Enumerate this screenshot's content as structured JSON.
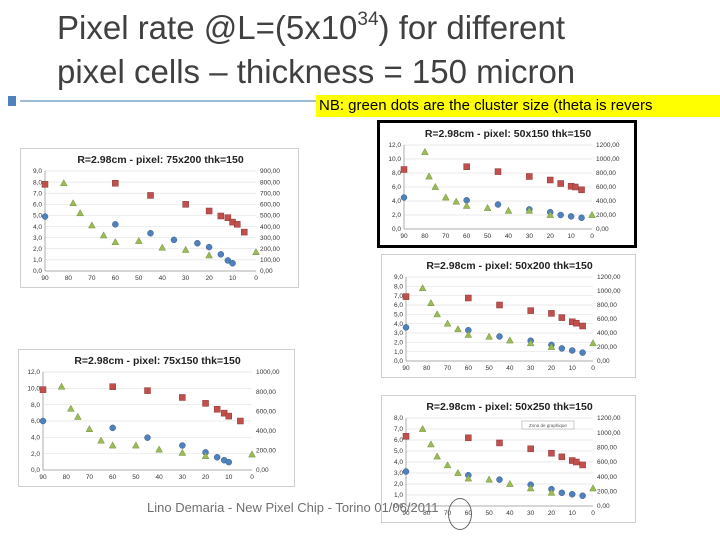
{
  "slide": {
    "title_part1": "Pixel rate @L=(5x10",
    "title_exp": "34",
    "title_part2": ") for different",
    "title_line2": "pixel cells – thickness = 150 micron",
    "note": "NB: green dots are the cluster size (theta is revers",
    "footer": "Lino Demaria - New Pixel Chip -  Torino 01/06/2011"
  },
  "colors": {
    "red": "#c0504d",
    "blue": "#4f81bd",
    "green": "#9bbb59",
    "accent": "#4f81bd",
    "highlight": "#ffff00"
  },
  "chart_data": [
    {
      "id": "c1",
      "type": "scatter",
      "title": "R=2.98cm - pixel: 75x200 thk=150",
      "xlim": [
        90,
        0
      ],
      "x_ticks": [
        "90",
        "80",
        "70",
        "60",
        "50",
        "40",
        "30",
        "20",
        "10",
        "0"
      ],
      "y_left_ticks": [
        "0,0",
        "1,0",
        "2,0",
        "3,0",
        "4,0",
        "5,0",
        "6,0",
        "7,0",
        "8,0",
        "9,0"
      ],
      "y_right_ticks": [
        "0,00",
        "100,00",
        "200,00",
        "300,00",
        "400,00",
        "500,00",
        "600,00",
        "700,00",
        "800,00",
        "900,00"
      ],
      "y_left_lim": [
        0,
        9
      ],
      "y_right_lim": [
        0,
        900
      ],
      "series": [
        {
          "name": "pixel rate (blue)",
          "color": "#4f81bd",
          "axis": "right",
          "shape": "diamond",
          "x": [
            90,
            60,
            45,
            35,
            25,
            20,
            15,
            12,
            10
          ],
          "y": [
            490,
            420,
            340,
            280,
            250,
            215,
            150,
            95,
            70
          ]
        },
        {
          "name": "pixel rate (red)",
          "color": "#c0504d",
          "axis": "right",
          "shape": "square",
          "x": [
            90,
            60,
            45,
            30,
            20,
            15,
            12,
            10,
            8,
            5
          ],
          "y": [
            780,
            790,
            680,
            600,
            540,
            495,
            480,
            440,
            420,
            350
          ]
        },
        {
          "name": "cluster size",
          "color": "#9bbb59",
          "axis": "left",
          "shape": "triangle",
          "x": [
            82,
            78,
            75,
            70,
            65,
            60,
            50,
            40,
            30,
            20,
            0
          ],
          "y": [
            7.9,
            6.1,
            5.2,
            4.1,
            3.2,
            2.6,
            2.7,
            2.1,
            1.9,
            1.4,
            1.7
          ]
        }
      ]
    },
    {
      "id": "c2",
      "type": "scatter",
      "title": "R=2.98cm - pixel: 50x150 thk=150",
      "xlim": [
        90,
        0
      ],
      "x_ticks": [
        "90",
        "80",
        "70",
        "60",
        "50",
        "40",
        "30",
        "20",
        "10",
        "0"
      ],
      "y_left_ticks": [
        "0,0",
        "2,0",
        "4,0",
        "6,0",
        "8,0",
        "10,0",
        "12,0"
      ],
      "y_right_ticks": [
        "0,00",
        "200,00",
        "400,00",
        "600,00",
        "800,00",
        "1000,00",
        "1200,00"
      ],
      "y_left_lim": [
        0,
        12
      ],
      "y_right_lim": [
        0,
        1200
      ],
      "series": [
        {
          "name": "pixel rate (blue)",
          "color": "#4f81bd",
          "axis": "right",
          "shape": "diamond",
          "x": [
            90,
            60,
            45,
            30,
            20,
            15,
            10,
            5
          ],
          "y": [
            450,
            410,
            350,
            280,
            240,
            200,
            180,
            160
          ]
        },
        {
          "name": "pixel rate (red)",
          "color": "#c0504d",
          "axis": "right",
          "shape": "square",
          "x": [
            90,
            60,
            45,
            30,
            20,
            15,
            10,
            8,
            5
          ],
          "y": [
            850,
            890,
            820,
            750,
            700,
            650,
            610,
            600,
            560
          ]
        },
        {
          "name": "cluster size",
          "color": "#9bbb59",
          "axis": "left",
          "shape": "triangle",
          "x": [
            80,
            78,
            75,
            70,
            65,
            60,
            50,
            40,
            30,
            20,
            0
          ],
          "y": [
            11.0,
            7.5,
            6.0,
            4.5,
            3.9,
            3.3,
            3.0,
            2.6,
            2.6,
            2.0,
            2.0
          ]
        }
      ]
    },
    {
      "id": "c3",
      "type": "scatter",
      "title": "R=2.98cm - pixel: 50x200 thk=150",
      "xlim": [
        90,
        0
      ],
      "x_ticks": [
        "90",
        "80",
        "70",
        "60",
        "50",
        "40",
        "30",
        "20",
        "10",
        "0"
      ],
      "y_left_ticks": [
        "0,0",
        "1,0",
        "2,0",
        "3,0",
        "4,0",
        "5,0",
        "6,0",
        "7,0",
        "8,0",
        "9,0"
      ],
      "y_right_ticks": [
        "0,00",
        "200,00",
        "400,00",
        "600,00",
        "800,00",
        "1000,00",
        "1200,00"
      ],
      "y_left_lim": [
        0,
        9
      ],
      "y_right_lim": [
        0,
        1200
      ],
      "series": [
        {
          "name": "pixel rate (blue)",
          "color": "#4f81bd",
          "axis": "right",
          "shape": "diamond",
          "x": [
            90,
            60,
            45,
            30,
            20,
            15,
            10,
            5
          ],
          "y": [
            480,
            440,
            350,
            290,
            230,
            180,
            150,
            120
          ]
        },
        {
          "name": "pixel rate (red)",
          "color": "#c0504d",
          "axis": "right",
          "shape": "square",
          "x": [
            90,
            60,
            45,
            30,
            20,
            15,
            10,
            8,
            5
          ],
          "y": [
            920,
            900,
            800,
            720,
            680,
            620,
            560,
            540,
            500
          ]
        },
        {
          "name": "cluster size",
          "color": "#9bbb59",
          "axis": "left",
          "shape": "triangle",
          "x": [
            82,
            78,
            75,
            70,
            65,
            60,
            50,
            40,
            30,
            20,
            0
          ],
          "y": [
            7.8,
            6.2,
            5.0,
            4.0,
            3.4,
            2.8,
            2.6,
            2.2,
            1.9,
            1.5,
            1.9
          ]
        }
      ]
    },
    {
      "id": "c4",
      "type": "scatter",
      "title": "R=2.98cm - pixel: 75x150 thk=150",
      "xlim": [
        90,
        0
      ],
      "x_ticks": [
        "90",
        "80",
        "70",
        "60",
        "50",
        "40",
        "30",
        "20",
        "10",
        "0"
      ],
      "y_left_ticks": [
        "0,0",
        "2,0",
        "4,0",
        "6,0",
        "8,0",
        "10,0",
        "12,0"
      ],
      "y_right_ticks": [
        "0,00",
        "200,00",
        "400,00",
        "600,00",
        "800,00",
        "1000,00"
      ],
      "y_left_lim": [
        0,
        12
      ],
      "y_right_lim": [
        0,
        1000
      ],
      "series": [
        {
          "name": "pixel rate (blue)",
          "color": "#4f81bd",
          "axis": "right",
          "shape": "diamond",
          "x": [
            90,
            60,
            45,
            30,
            20,
            15,
            12,
            10
          ],
          "y": [
            500,
            430,
            330,
            250,
            180,
            130,
            100,
            80
          ]
        },
        {
          "name": "pixel rate (red)",
          "color": "#c0504d",
          "axis": "right",
          "shape": "square",
          "x": [
            90,
            60,
            45,
            30,
            20,
            15,
            12,
            10,
            5
          ],
          "y": [
            820,
            850,
            810,
            740,
            680,
            620,
            580,
            550,
            500
          ]
        },
        {
          "name": "cluster size",
          "color": "#9bbb59",
          "axis": "left",
          "shape": "triangle",
          "x": [
            82,
            78,
            75,
            70,
            65,
            60,
            50,
            40,
            30,
            20,
            0
          ],
          "y": [
            10.2,
            7.5,
            6.5,
            5.0,
            3.6,
            3.0,
            3.0,
            2.5,
            2.1,
            1.7,
            1.9
          ]
        }
      ]
    },
    {
      "id": "c5",
      "type": "scatter",
      "title": "R=2.98cm - pixel: 50x250 thk=150",
      "legend_label": "Zona de graphique",
      "xlim": [
        90,
        0
      ],
      "x_ticks": [
        "90",
        "80",
        "70",
        "60",
        "50",
        "40",
        "30",
        "20",
        "10",
        "0"
      ],
      "y_left_ticks": [
        "0,0",
        "1,0",
        "2,0",
        "3,0",
        "4,0",
        "5,0",
        "6,0",
        "7,0",
        "8,0"
      ],
      "y_right_ticks": [
        "0,00",
        "200,00",
        "400,00",
        "600,00",
        "800,00",
        "1000,00",
        "1200,00"
      ],
      "y_left_lim": [
        0,
        8
      ],
      "y_right_lim": [
        0,
        1200
      ],
      "series": [
        {
          "name": "pixel rate (blue)",
          "color": "#4f81bd",
          "axis": "right",
          "shape": "diamond",
          "x": [
            90,
            60,
            45,
            30,
            20,
            15,
            10,
            5
          ],
          "y": [
            470,
            420,
            360,
            290,
            230,
            180,
            160,
            140
          ]
        },
        {
          "name": "pixel rate (red)",
          "color": "#c0504d",
          "axis": "right",
          "shape": "square",
          "x": [
            90,
            60,
            45,
            30,
            20,
            15,
            10,
            8,
            5
          ],
          "y": [
            950,
            930,
            860,
            780,
            720,
            670,
            620,
            600,
            560
          ]
        },
        {
          "name": "cluster size",
          "color": "#9bbb59",
          "axis": "left",
          "shape": "triangle",
          "x": [
            82,
            78,
            75,
            70,
            65,
            60,
            50,
            40,
            30,
            20,
            0
          ],
          "y": [
            7.0,
            5.6,
            4.5,
            3.7,
            3.0,
            2.5,
            2.4,
            2.0,
            1.6,
            1.2,
            1.6
          ]
        }
      ]
    }
  ]
}
